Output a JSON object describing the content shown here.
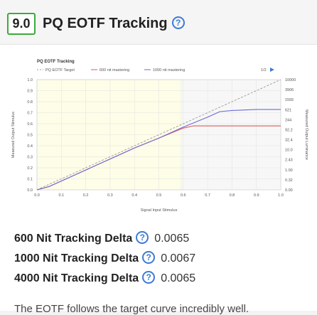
{
  "header": {
    "score": "9.0",
    "title": "PQ EOTF Tracking"
  },
  "metrics": [
    {
      "label": "600 Nit Tracking Delta",
      "value": "0.0065"
    },
    {
      "label": "1000 Nit Tracking Delta",
      "value": "0.0067"
    },
    {
      "label": "4000 Nit Tracking Delta",
      "value": "0.0065"
    }
  ],
  "description": "The EOTF follows the target curve incredibly well.",
  "chart_data": {
    "type": "line",
    "title": "PQ EOTF Tracking",
    "xlabel": "Signal Input Stimulus",
    "ylabel": "Measured Output Stimulus",
    "y2label": "Measured Output Luminance",
    "page_indicator": "1/2",
    "xlim": [
      0,
      1.0
    ],
    "ylim": [
      0,
      1.0
    ],
    "xticks": [
      "0.0",
      "0.1",
      "0.2",
      "0.3",
      "0.4",
      "0.5",
      "0.6",
      "0.7",
      "0.8",
      "0.9",
      "1.0"
    ],
    "yticks": [
      "0.0",
      "0.1",
      "0.2",
      "0.3",
      "0.4",
      "0.5",
      "0.6",
      "0.7",
      "0.8",
      "0.9",
      "1.0"
    ],
    "y2ticks": [
      "0.00",
      "0.32",
      "1.00",
      "2.43",
      "10.0",
      "32.4",
      "92.2",
      "244",
      "621",
      "1555",
      "3906",
      "10000"
    ],
    "highlight_region_x": [
      0,
      0.59
    ],
    "colors": {
      "target": "#999999",
      "n600": "#e05a5a",
      "n1000": "#6b6bd8",
      "highlight": "#fdfde8"
    },
    "series": [
      {
        "name": "PQ EOTF Target",
        "style": "dashed",
        "color": "#999999",
        "x": [
          0,
          1.0
        ],
        "y": [
          0,
          1.0
        ]
      },
      {
        "name": "600 nit mastering",
        "color": "#e05a5a",
        "x": [
          0,
          0.05,
          0.1,
          0.2,
          0.3,
          0.4,
          0.5,
          0.6,
          0.64,
          0.7,
          0.74,
          0.8,
          0.9,
          1.0
        ],
        "y": [
          0,
          0.03,
          0.08,
          0.18,
          0.28,
          0.38,
          0.47,
          0.56,
          0.58,
          0.58,
          0.58,
          0.58,
          0.58,
          0.58
        ]
      },
      {
        "name": "1000 nit mastering",
        "color": "#6b6bd8",
        "x": [
          0,
          0.05,
          0.1,
          0.2,
          0.3,
          0.4,
          0.5,
          0.6,
          0.7,
          0.75,
          0.8,
          0.9,
          1.0
        ],
        "y": [
          0,
          0.03,
          0.08,
          0.18,
          0.28,
          0.38,
          0.47,
          0.57,
          0.66,
          0.71,
          0.72,
          0.73,
          0.73
        ]
      }
    ]
  }
}
